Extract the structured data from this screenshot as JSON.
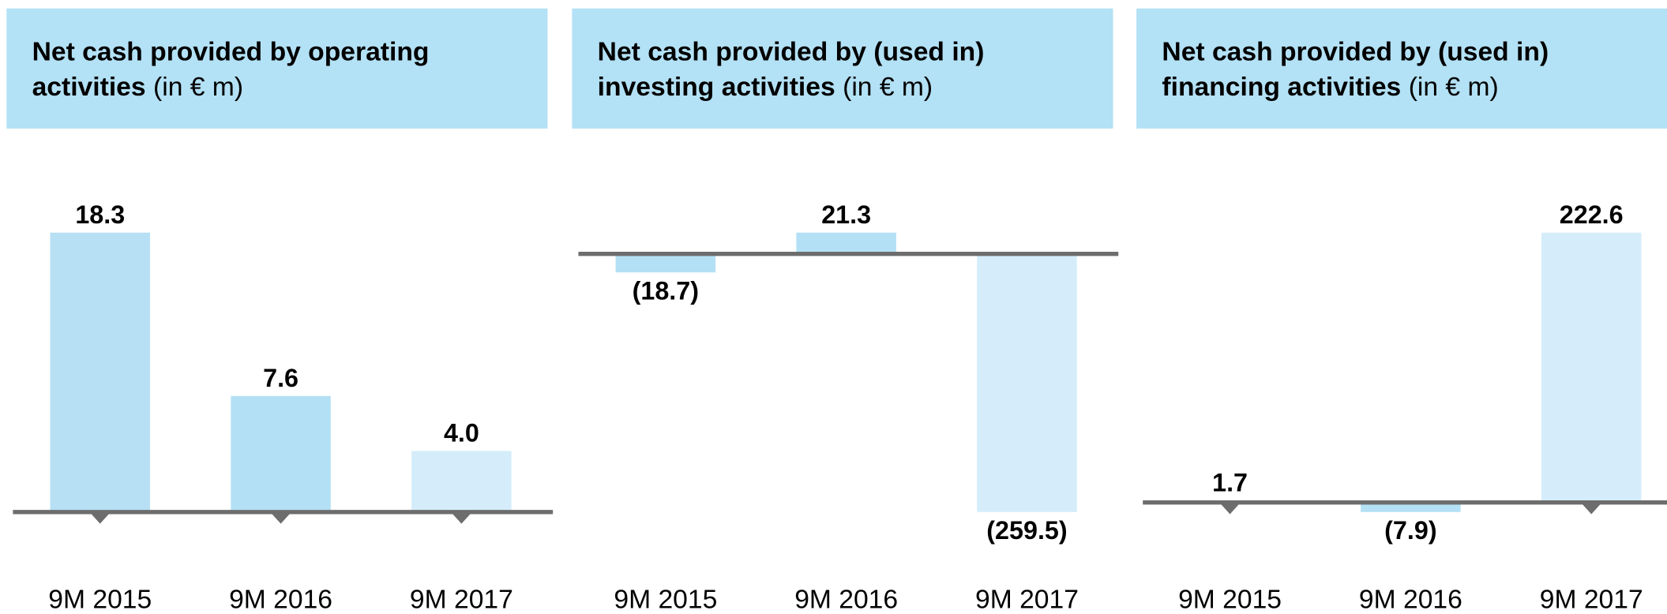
{
  "chart_data": [
    {
      "type": "bar",
      "title_lines": [
        "Net cash provided by operating",
        "activities"
      ],
      "unit": "(in € m)",
      "categories": [
        "9M 2015",
        "9M 2016",
        "9M 2017"
      ],
      "values": [
        18.3,
        7.6,
        4.0
      ],
      "value_labels": [
        "18.3",
        "7.6",
        "4.0"
      ],
      "colors": [
        "#b8e0f5",
        "#b3e0f5",
        "#d5edfa"
      ]
    },
    {
      "type": "bar",
      "title_lines": [
        "Net cash provided by (used in)",
        "investing activities"
      ],
      "unit": "(in € m)",
      "categories": [
        "9M 2015",
        "9M 2016",
        "9M 2017"
      ],
      "values": [
        -18.7,
        21.3,
        -259.5
      ],
      "value_labels": [
        "(18.7)",
        "21.3",
        "(259.5)"
      ],
      "colors": [
        "#b3e0f5",
        "#b3e0f5",
        "#d5edfa"
      ]
    },
    {
      "type": "bar",
      "title_lines": [
        "Net cash provided by (used in)",
        "financing activities"
      ],
      "unit": "(in € m)",
      "categories": [
        "9M 2015",
        "9M 2016",
        "9M 2017"
      ],
      "values": [
        1.7,
        -7.9,
        222.6
      ],
      "value_labels": [
        "1.7",
        "(7.9)",
        "222.6"
      ],
      "colors": [
        "#b8e0f5",
        "#b3e0f5",
        "#d5edfa"
      ]
    }
  ]
}
